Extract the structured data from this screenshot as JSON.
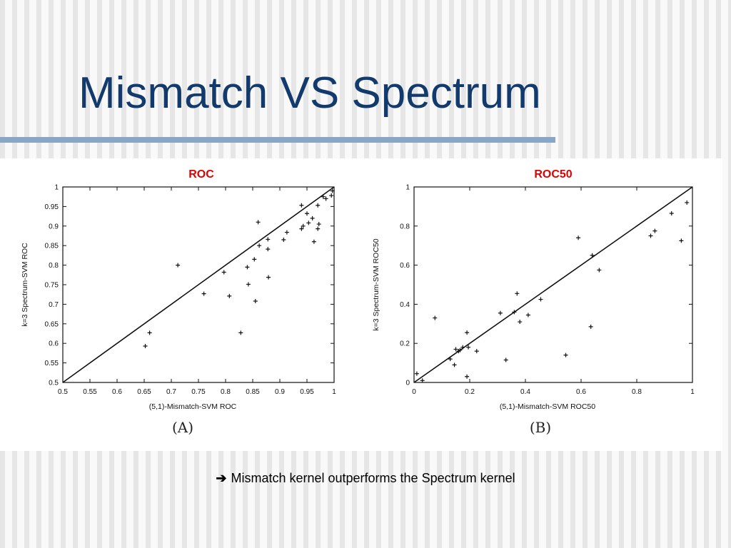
{
  "slide": {
    "title": "Mismatch VS Spectrum",
    "conclusion_arrow": "➔",
    "conclusion_text": "Mismatch kernel outperforms the Spectrum kernel"
  },
  "colors": {
    "title": "#123a6c",
    "rule": "#8aa6c7",
    "panel_title": "#e00000",
    "plot_ink": "#111111"
  },
  "chart_data": [
    {
      "type": "scatter",
      "title": "ROC",
      "panel_label": "(A)",
      "xlabel": "(5,1)-Mismatch-SVM ROC",
      "ylabel": "k=3 Spectrum-SVM ROC",
      "xlim": [
        0.5,
        1
      ],
      "ylim": [
        0.5,
        1
      ],
      "xticks": [
        "0.5",
        "0.55",
        "0.6",
        "0.65",
        "0.7",
        "0.75",
        "0.8",
        "0.85",
        "0.9",
        "0.95",
        "1"
      ],
      "yticks": [
        "0.5",
        "0.55",
        "0.6",
        "0.65",
        "0.7",
        "0.75",
        "0.8",
        "0.85",
        "0.9",
        "0.95",
        "1"
      ],
      "diagonal": true,
      "marker": "+",
      "grid": false,
      "points": [
        [
          0.652,
          0.593
        ],
        [
          0.66,
          0.627
        ],
        [
          0.712,
          0.8
        ],
        [
          0.76,
          0.727
        ],
        [
          0.797,
          0.782
        ],
        [
          0.807,
          0.721
        ],
        [
          0.828,
          0.627
        ],
        [
          0.84,
          0.795
        ],
        [
          0.842,
          0.751
        ],
        [
          0.853,
          0.815
        ],
        [
          0.855,
          0.708
        ],
        [
          0.86,
          0.91
        ],
        [
          0.862,
          0.85
        ],
        [
          0.878,
          0.866
        ],
        [
          0.878,
          0.841
        ],
        [
          0.879,
          0.769
        ],
        [
          0.907,
          0.865
        ],
        [
          0.913,
          0.884
        ],
        [
          0.94,
          0.953
        ],
        [
          0.94,
          0.893
        ],
        [
          0.943,
          0.9
        ],
        [
          0.95,
          0.932
        ],
        [
          0.953,
          0.908
        ],
        [
          0.96,
          0.92
        ],
        [
          0.963,
          0.86
        ],
        [
          0.97,
          0.953
        ],
        [
          0.97,
          0.893
        ],
        [
          0.972,
          0.905
        ],
        [
          0.98,
          0.975
        ],
        [
          0.985,
          0.97
        ],
        [
          0.995,
          0.978
        ],
        [
          0.997,
          0.99
        ]
      ]
    },
    {
      "type": "scatter",
      "title": "ROC50",
      "panel_label": "(B)",
      "xlabel": "(5,1)-Mismatch-SVM ROC50",
      "ylabel": "k=3 Spectrum-SVM ROC50",
      "xlim": [
        0,
        1
      ],
      "ylim": [
        0,
        1
      ],
      "xticks": [
        "0",
        "0.2",
        "0.4",
        "0.6",
        "0.8",
        "1"
      ],
      "yticks": [
        "0",
        "0.2",
        "0.4",
        "0.6",
        "0.8",
        "1"
      ],
      "diagonal": true,
      "marker": "+",
      "grid": false,
      "points": [
        [
          0.01,
          0.045
        ],
        [
          0.03,
          0.01
        ],
        [
          0.075,
          0.33
        ],
        [
          0.13,
          0.12
        ],
        [
          0.145,
          0.09
        ],
        [
          0.15,
          0.17
        ],
        [
          0.16,
          0.16
        ],
        [
          0.165,
          0.165
        ],
        [
          0.175,
          0.18
        ],
        [
          0.19,
          0.255
        ],
        [
          0.19,
          0.03
        ],
        [
          0.195,
          0.18
        ],
        [
          0.225,
          0.16
        ],
        [
          0.31,
          0.355
        ],
        [
          0.33,
          0.115
        ],
        [
          0.36,
          0.36
        ],
        [
          0.37,
          0.455
        ],
        [
          0.38,
          0.31
        ],
        [
          0.41,
          0.345
        ],
        [
          0.455,
          0.425
        ],
        [
          0.545,
          0.14
        ],
        [
          0.59,
          0.74
        ],
        [
          0.635,
          0.285
        ],
        [
          0.64,
          0.65
        ],
        [
          0.665,
          0.575
        ],
        [
          0.85,
          0.75
        ],
        [
          0.865,
          0.775
        ],
        [
          0.925,
          0.865
        ],
        [
          0.96,
          0.725
        ],
        [
          0.98,
          0.92
        ]
      ]
    }
  ]
}
